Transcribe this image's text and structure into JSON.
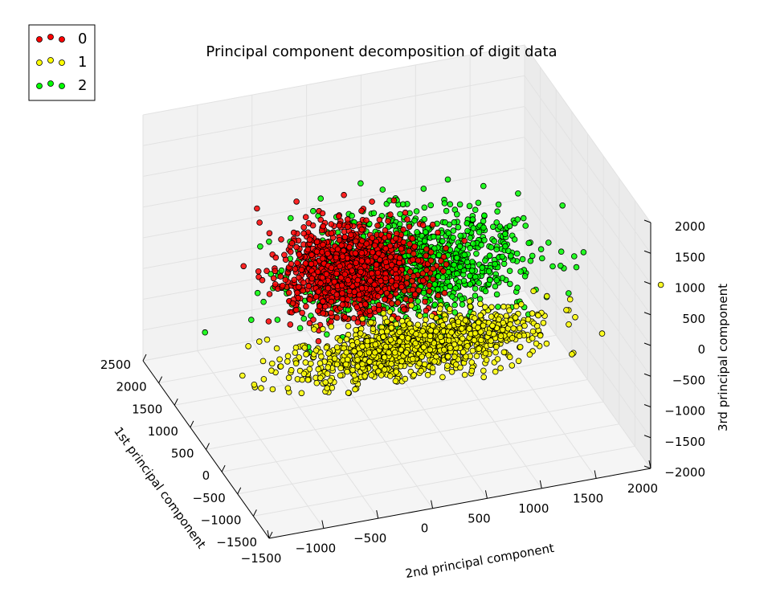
{
  "chart_data": {
    "type": "scatter",
    "projection": "3d",
    "title": "Principal component decomposition of digit data",
    "xlabel": "1st principal component",
    "ylabel": "2nd principal component",
    "zlabel": "3rd principal component",
    "xlim": [
      -1500,
      2500
    ],
    "ylim": [
      -1500,
      2000
    ],
    "zlim": [
      -2000,
      2000
    ],
    "x_ticks": [
      "2500",
      "2000",
      "1500",
      "1000",
      "500",
      "0",
      "−500",
      "−1000",
      "−1500"
    ],
    "y_ticks": [
      "2000",
      "1500",
      "1000",
      "500",
      "0",
      "−500",
      "−1000",
      "−1500"
    ],
    "z_ticks": [
      "2000",
      "1500",
      "1000",
      "500",
      "0",
      "−500",
      "−1000",
      "−1500",
      "−2000"
    ],
    "grid": true,
    "legend_position": "upper-left",
    "series": [
      {
        "name": "0",
        "color": "#ff0000",
        "count": 178,
        "center": [
          -300,
          -400,
          1150
        ],
        "spread": [
          350,
          300,
          280
        ]
      },
      {
        "name": "1",
        "color": "#ffff00",
        "count": 182,
        "center": [
          -550,
          150,
          -100
        ],
        "spread": [
          250,
          550,
          120
        ]
      },
      {
        "name": "2",
        "color": "#00ff00",
        "count": 177,
        "center": [
          1100,
          600,
          -150
        ],
        "spread": [
          450,
          500,
          260
        ]
      }
    ]
  }
}
